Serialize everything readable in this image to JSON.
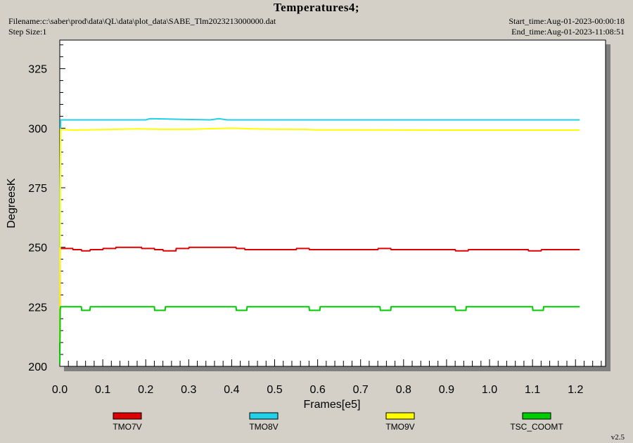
{
  "header": {
    "title": "Temperatures4;",
    "filename": "Filename:c:\\saber\\prod\\data\\QL\\data\\plot_data\\SABE_Tlm2023213000000.dat",
    "step_size": "Step Size:1",
    "start_time": "Start_time:Aug-01-2023-00:00:18",
    "end_time": "End_time:Aug-01-2023-11:08:51"
  },
  "version": "v2.5",
  "colors": {
    "background": "#d4d0c8",
    "plot_area": "#ffffff",
    "TMO7V": "#dd0000",
    "TMO8V": "#22d0e8",
    "TMO9V": "#ffff00",
    "TSC_COOMT": "#00cc00"
  },
  "chart_data": {
    "type": "line",
    "title": "Temperatures4;",
    "xlabel": "Frames[e5]",
    "ylabel": "DegreesK",
    "xlim": [
      0.0,
      1.27
    ],
    "ylim": [
      200,
      337
    ],
    "x_ticks": [
      "0.0",
      "0.1",
      "0.2",
      "0.3",
      "0.4",
      "0.5",
      "0.6",
      "0.7",
      "0.8",
      "0.9",
      "1.0",
      "1.1",
      "1.2"
    ],
    "y_ticks": [
      "200",
      "225",
      "250",
      "275",
      "300",
      "325"
    ],
    "grid": false,
    "legend_position": "bottom",
    "series": [
      {
        "name": "TMO7V",
        "x": [
          0.0,
          0.001,
          0.002,
          0.03,
          0.031,
          0.05,
          0.051,
          0.07,
          0.071,
          0.1,
          0.101,
          0.13,
          0.131,
          0.19,
          0.191,
          0.22,
          0.221,
          0.24,
          0.241,
          0.27,
          0.271,
          0.3,
          0.301,
          0.41,
          0.411,
          0.43,
          0.431,
          0.55,
          0.551,
          0.58,
          0.581,
          0.74,
          0.741,
          0.77,
          0.771,
          0.92,
          0.921,
          0.95,
          0.951,
          1.09,
          1.091,
          1.12,
          1.121,
          1.21
        ],
        "y": [
          205,
          249.5,
          249.5,
          249.5,
          249,
          249,
          248.5,
          248.5,
          249,
          249,
          249.5,
          249.5,
          250,
          250,
          249.5,
          249.5,
          249,
          249,
          248.5,
          248.5,
          249.5,
          249.5,
          250,
          250,
          249.5,
          249.5,
          249,
          249,
          249.5,
          249.5,
          249,
          249,
          249.5,
          249.5,
          249,
          249,
          248.5,
          248.5,
          249,
          249,
          248.5,
          248.5,
          249,
          249
        ]
      },
      {
        "name": "TMO8V",
        "x": [
          0.0,
          0.002,
          0.01,
          0.2,
          0.21,
          0.35,
          0.37,
          0.39,
          0.4,
          1.21
        ],
        "y": [
          250,
          303.5,
          303.5,
          303.5,
          304,
          303.5,
          304,
          303.5,
          303.5,
          303.5
        ]
      },
      {
        "name": "TMO9V",
        "x": [
          0.0,
          0.002,
          0.03,
          0.1,
          0.18,
          0.25,
          0.31,
          0.35,
          0.4,
          0.45,
          0.5,
          0.57,
          0.6,
          0.9,
          1.21
        ],
        "y": [
          210,
          299.5,
          299.2,
          299.4,
          299.7,
          299.5,
          299.6,
          299.8,
          300,
          299.7,
          299.6,
          299.5,
          299.3,
          299.2,
          299.2
        ]
      },
      {
        "name": "TSC_COOMT",
        "x": [
          0.0,
          0.001,
          0.002,
          0.05,
          0.051,
          0.07,
          0.071,
          0.22,
          0.221,
          0.245,
          0.246,
          0.41,
          0.411,
          0.435,
          0.436,
          0.58,
          0.581,
          0.605,
          0.606,
          0.745,
          0.746,
          0.77,
          0.771,
          0.92,
          0.921,
          0.945,
          0.946,
          1.1,
          1.101,
          1.125,
          1.126,
          1.21
        ],
        "y": [
          201,
          224,
          225,
          225,
          223.5,
          223.5,
          225,
          225,
          223.5,
          223.5,
          225,
          225,
          223.5,
          223.5,
          225,
          225,
          223.5,
          223.5,
          225,
          225,
          223.5,
          223.5,
          225,
          225,
          223.5,
          223.5,
          225,
          225,
          223.5,
          223.5,
          225,
          225
        ]
      }
    ]
  }
}
